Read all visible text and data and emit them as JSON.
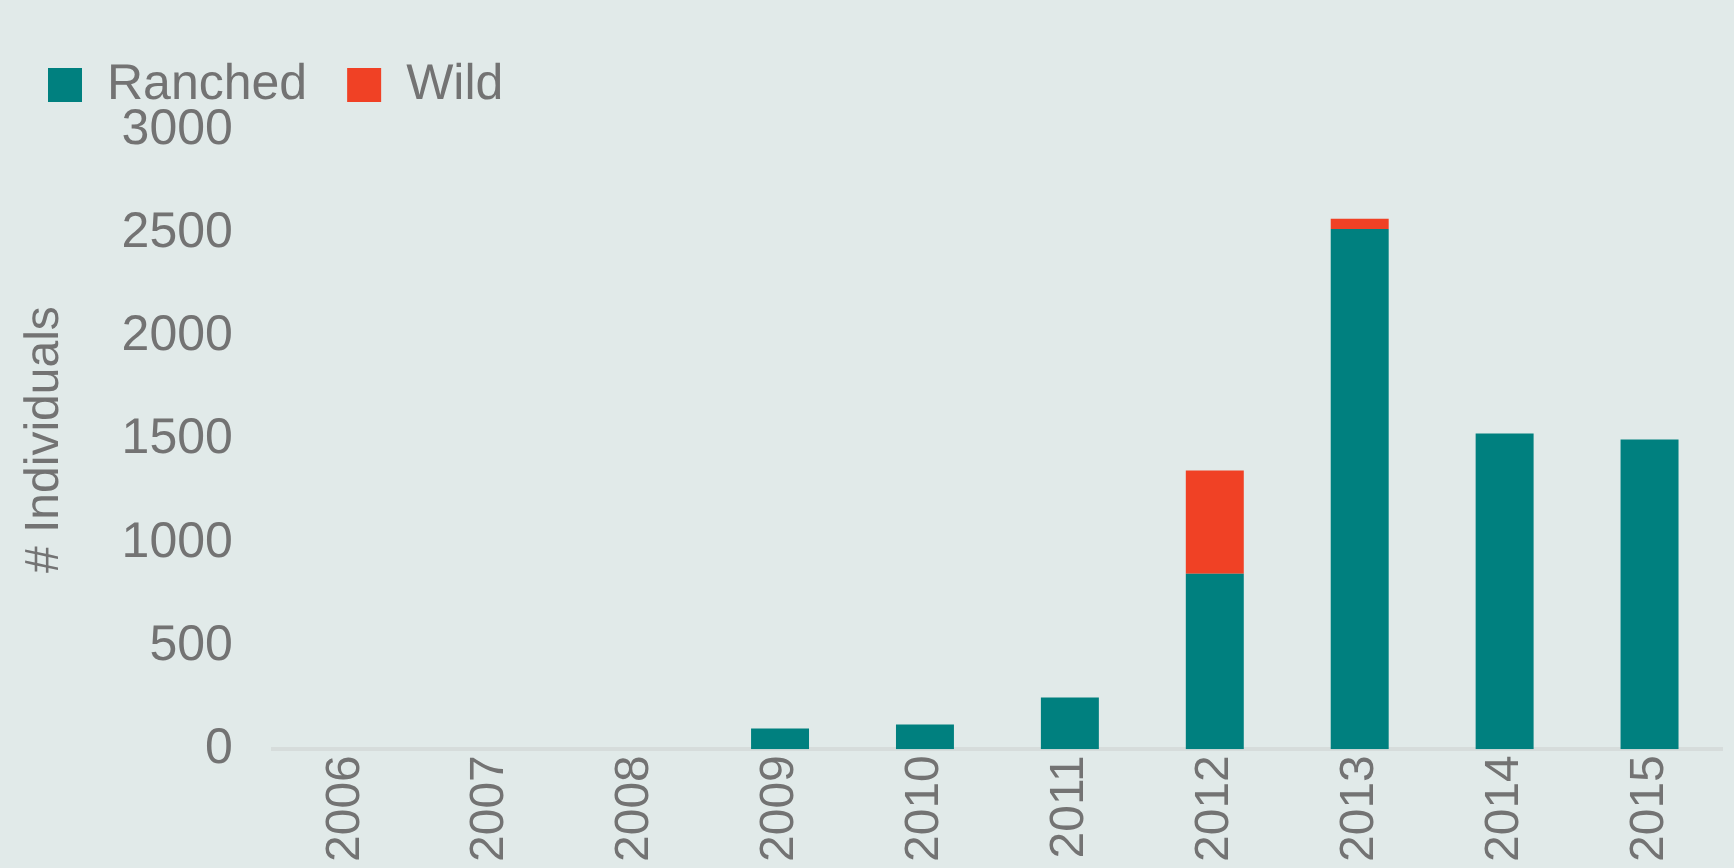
{
  "chart_data": {
    "type": "bar",
    "stacked": true,
    "ylabel": "# Individuals",
    "categories": [
      "2006",
      "2007",
      "2008",
      "2009",
      "2010",
      "2011",
      "2012",
      "2013",
      "2014",
      "2015"
    ],
    "series": [
      {
        "name": "Ranched",
        "color": "#00807f",
        "values": [
          0,
          0,
          0,
          100,
          120,
          250,
          850,
          2520,
          1530,
          1500
        ]
      },
      {
        "name": "Wild",
        "color": "#f04125",
        "values": [
          0,
          0,
          0,
          0,
          0,
          0,
          500,
          50,
          0,
          0
        ]
      }
    ],
    "ylim": [
      0,
      3000
    ],
    "yticks": [
      0,
      500,
      1000,
      1500,
      2000,
      2500,
      3000
    ],
    "grid": false,
    "legend": "top left"
  }
}
